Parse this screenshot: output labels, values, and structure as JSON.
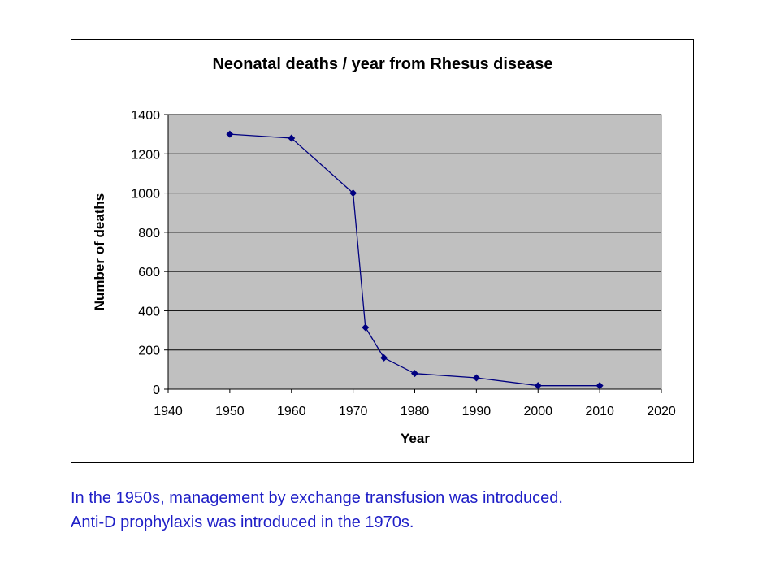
{
  "chart_data": {
    "type": "line",
    "title": "Neonatal deaths / year from Rhesus disease",
    "xlabel": "Year",
    "ylabel": "Number of deaths",
    "xlim": [
      1940,
      2020
    ],
    "ylim": [
      0,
      1400
    ],
    "xticks": [
      1940,
      1950,
      1960,
      1970,
      1980,
      1990,
      2000,
      2010,
      2020
    ],
    "yticks": [
      0,
      200,
      400,
      600,
      800,
      1000,
      1200,
      1400
    ],
    "grid": true,
    "legend": "none",
    "series": [
      {
        "name": "Neonatal deaths",
        "color": "#000080",
        "x": [
          1950,
          1960,
          1970,
          1972,
          1975,
          1980,
          1990,
          2000,
          2010
        ],
        "y": [
          1300,
          1280,
          1000,
          315,
          160,
          80,
          58,
          18,
          18
        ]
      }
    ],
    "plot_background": "#c0c0c0"
  },
  "caption": {
    "line1": "In the 1950s, management by exchange transfusion was introduced.",
    "line2": "Anti-D prophylaxis was introduced in the 1970s.",
    "color": "#1f1fc7"
  }
}
